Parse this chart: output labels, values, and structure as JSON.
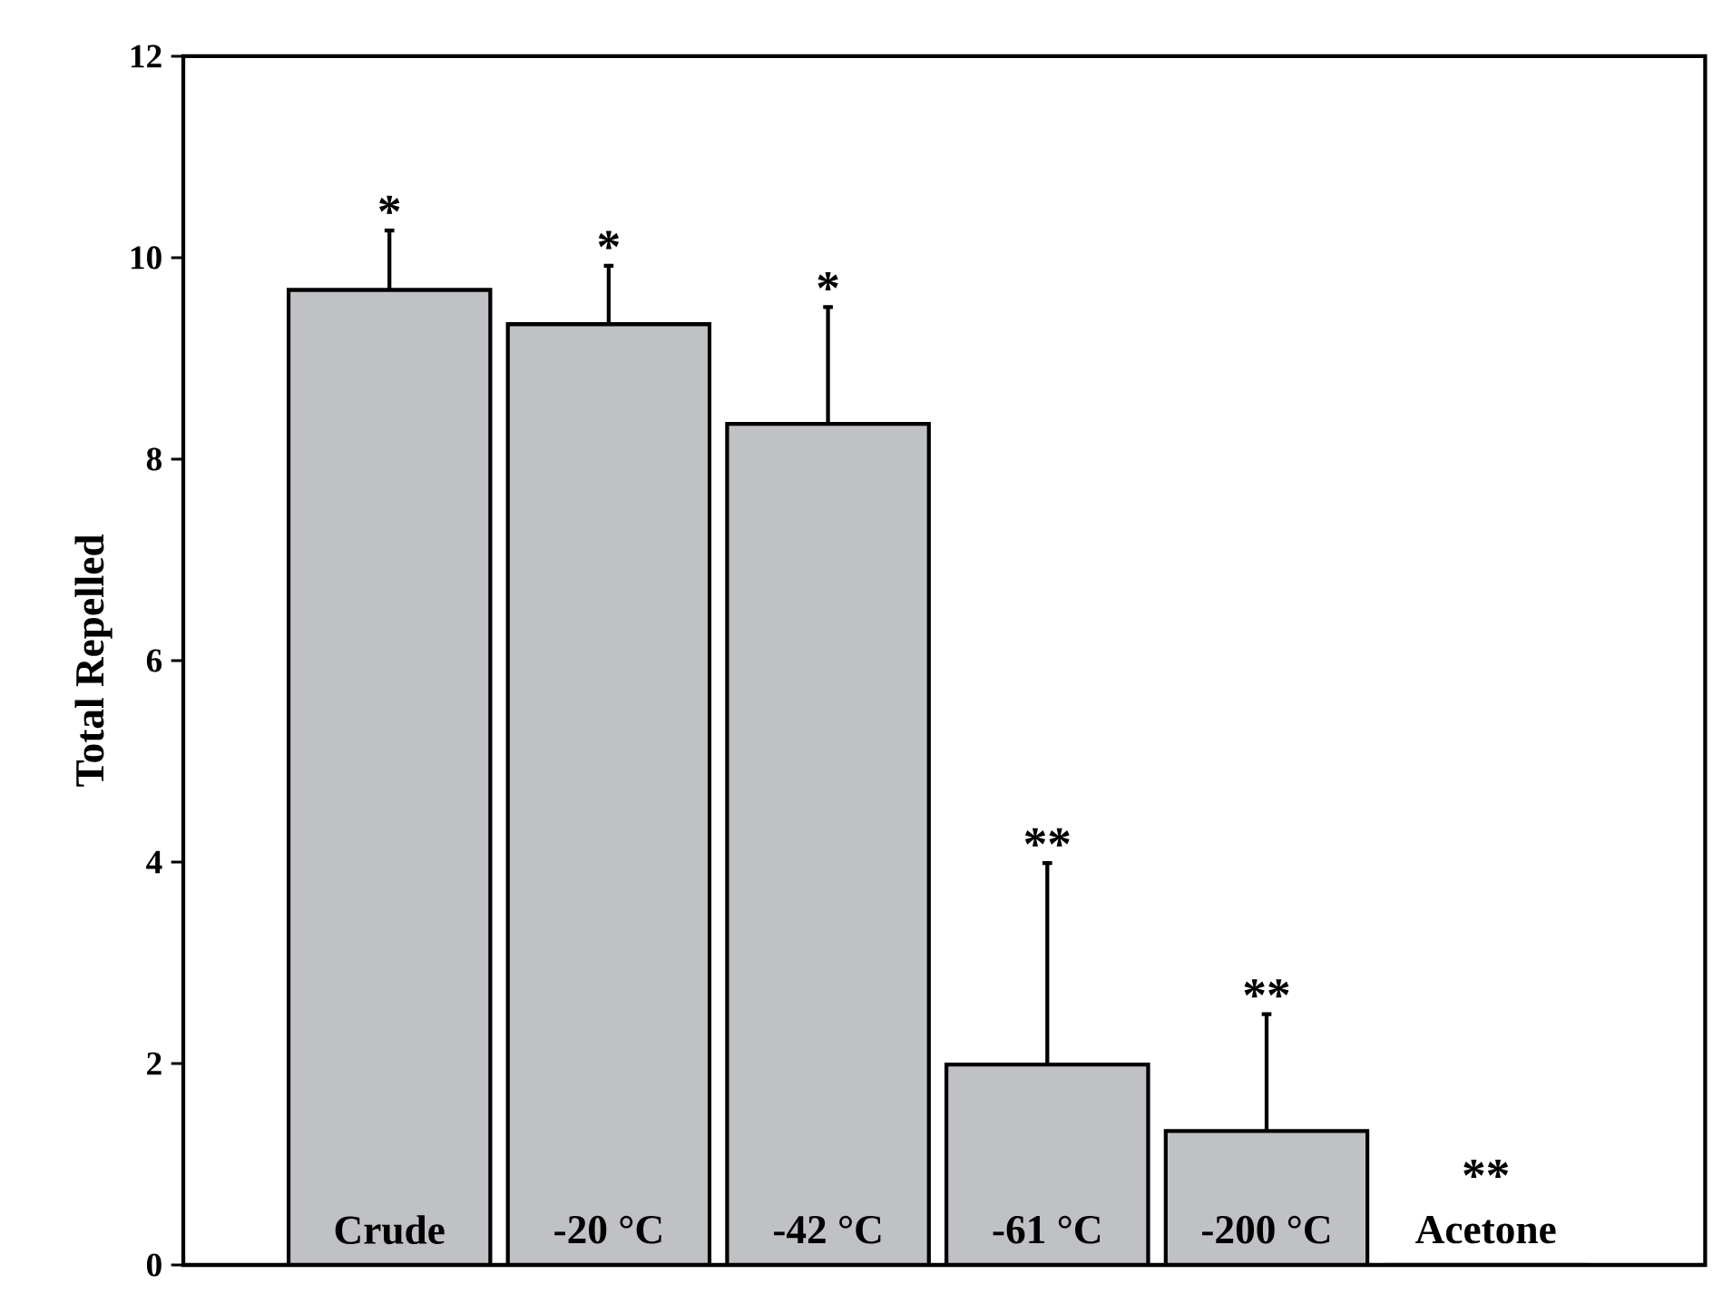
{
  "chart_data": {
    "type": "bar",
    "ylabel": "Total Repelled",
    "categories": [
      "Crude",
      "-20 °C",
      "-42 °C",
      "-61 °C",
      "-200 °C",
      "Acetone"
    ],
    "values": [
      9.68,
      9.34,
      8.35,
      1.99,
      1.33,
      0
    ],
    "errors": [
      [
        9.68,
        10.27
      ],
      [
        9.34,
        9.92
      ],
      [
        8.35,
        9.51
      ],
      [
        1.99,
        3.99
      ],
      [
        1.33,
        2.49
      ],
      null
    ],
    "color": "#c0c1c5",
    "ylim": [
      0,
      12
    ],
    "yticks": [
      0,
      2,
      4,
      6,
      8,
      10,
      12
    ],
    "grid": false,
    "annotations": [
      "*",
      "*",
      "*",
      "**",
      "**",
      "**"
    ]
  }
}
